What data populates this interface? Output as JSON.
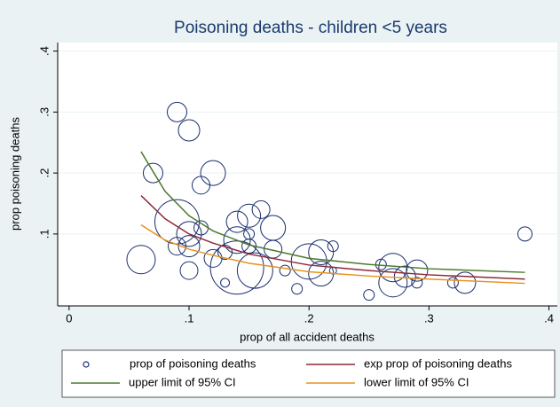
{
  "chart_data": {
    "type": "scatter",
    "title": "Poisoning deaths - children <5 years",
    "x_label": "prop of all accident deaths",
    "y_label": "prop poisoning deaths",
    "xlim": [
      -0.0095,
      0.407
    ],
    "ylim": [
      -0.018,
      0.414
    ],
    "xticks": [
      0,
      {
        "value": 0.1,
        "label": ".1"
      },
      {
        "value": 0.2,
        "label": ".2"
      },
      {
        "value": 0.3,
        "label": ".3"
      },
      {
        "value": 0.4,
        "label": ".4"
      }
    ],
    "yticks": [
      {
        "value": 0.1,
        "label": ".1"
      },
      {
        "value": 0.2,
        "label": ".2"
      },
      {
        "value": 0.3,
        "label": ".3"
      },
      {
        "value": 0.4,
        "label": ".4"
      }
    ],
    "grid": true,
    "legend": "bottom",
    "series": [
      {
        "name": "prop of poisoning deaths",
        "type": "scatter",
        "color": "#1a2e6e",
        "x": [
          0.06,
          0.07,
          0.09,
          0.1,
          0.11,
          0.12,
          0.09,
          0.09,
          0.1,
          0.1,
          0.1,
          0.11,
          0.12,
          0.13,
          0.13,
          0.14,
          0.14,
          0.14,
          0.15,
          0.15,
          0.15,
          0.155,
          0.16,
          0.17,
          0.17,
          0.18,
          0.19,
          0.2,
          0.21,
          0.21,
          0.22,
          0.22,
          0.25,
          0.26,
          0.27,
          0.27,
          0.28,
          0.29,
          0.29,
          0.32,
          0.33,
          0.38
        ],
        "values": [
          0.058,
          0.2,
          0.3,
          0.27,
          0.18,
          0.2,
          0.12,
          0.08,
          0.1,
          0.08,
          0.04,
          0.11,
          0.06,
          0.07,
          0.02,
          0.045,
          0.12,
          0.09,
          0.13,
          0.1,
          0.08,
          0.04,
          0.14,
          0.11,
          0.075,
          0.04,
          0.01,
          0.055,
          0.07,
          0.035,
          0.08,
          0.04,
          0.0,
          0.05,
          0.045,
          0.02,
          0.03,
          0.02,
          0.04,
          0.02,
          0.02,
          0.1
        ],
        "sizes": [
          256,
          121,
          121,
          144,
          100,
          196,
          625,
          100,
          196,
          144,
          100,
          64,
          100,
          64,
          25,
          900,
          144,
          225,
          169,
          36,
          64,
          400,
          100,
          196,
          100,
          36,
          36,
          400,
          196,
          196,
          36,
          16,
          36,
          36,
          256,
          256,
          144,
          36,
          144,
          36,
          144,
          64
        ]
      },
      {
        "name": "exp prop of poisoning deaths",
        "type": "line",
        "color": "#8b2a3a",
        "x": [
          0.06,
          0.08,
          0.1,
          0.12,
          0.15,
          0.2,
          0.25,
          0.3,
          0.38
        ],
        "values": [
          0.163,
          0.125,
          0.1,
          0.085,
          0.067,
          0.049,
          0.04,
          0.033,
          0.026
        ]
      },
      {
        "name": "upper limit of 95% CI",
        "type": "line",
        "color": "#4c7a2e",
        "x": [
          0.06,
          0.08,
          0.1,
          0.12,
          0.15,
          0.2,
          0.25,
          0.3,
          0.38
        ],
        "values": [
          0.235,
          0.17,
          0.13,
          0.105,
          0.082,
          0.06,
          0.05,
          0.043,
          0.037
        ]
      },
      {
        "name": "lower limit of 95% CI",
        "type": "line",
        "color": "#e8921e",
        "x": [
          0.06,
          0.08,
          0.1,
          0.12,
          0.15,
          0.2,
          0.25,
          0.3,
          0.38
        ],
        "values": [
          0.115,
          0.09,
          0.075,
          0.065,
          0.052,
          0.038,
          0.031,
          0.026,
          0.019
        ]
      }
    ]
  }
}
